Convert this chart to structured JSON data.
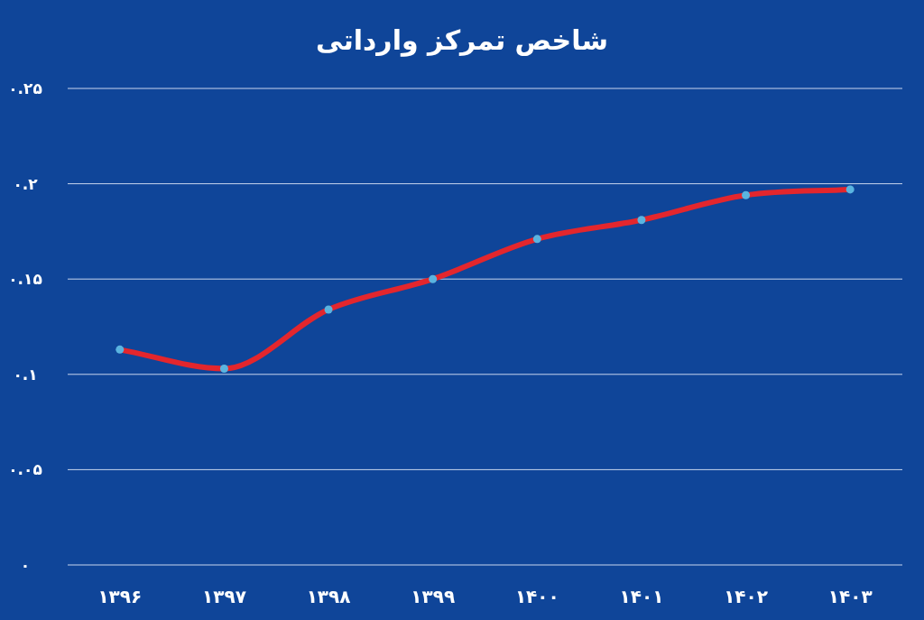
{
  "chart_data": {
    "type": "line",
    "title": "شاخص تمرکز وارداتی",
    "categories": [
      "۱۳۹۶",
      "۱۳۹۷",
      "۱۳۹۸",
      "۱۳۹۹",
      "۱۴۰۰",
      "۱۴۰۱",
      "۱۴۰۲",
      "۱۴۰۳"
    ],
    "series": [
      {
        "color": "#e3262d",
        "values": [
          0.113,
          0.103,
          0.134,
          0.15,
          0.171,
          0.181,
          0.194,
          0.197
        ]
      }
    ],
    "ylim": [
      0,
      0.25
    ],
    "yticks": [
      {
        "value": 0,
        "label": "۰"
      },
      {
        "value": 0.05,
        "label": "۰.۰۵"
      },
      {
        "value": 0.1,
        "label": "۰.۱"
      },
      {
        "value": 0.15,
        "label": "۰.۱۵"
      },
      {
        "value": 0.2,
        "label": "۰.۲"
      },
      {
        "value": 0.25,
        "label": "۰.۲۵"
      }
    ],
    "grid": "y",
    "marker": "circle"
  }
}
